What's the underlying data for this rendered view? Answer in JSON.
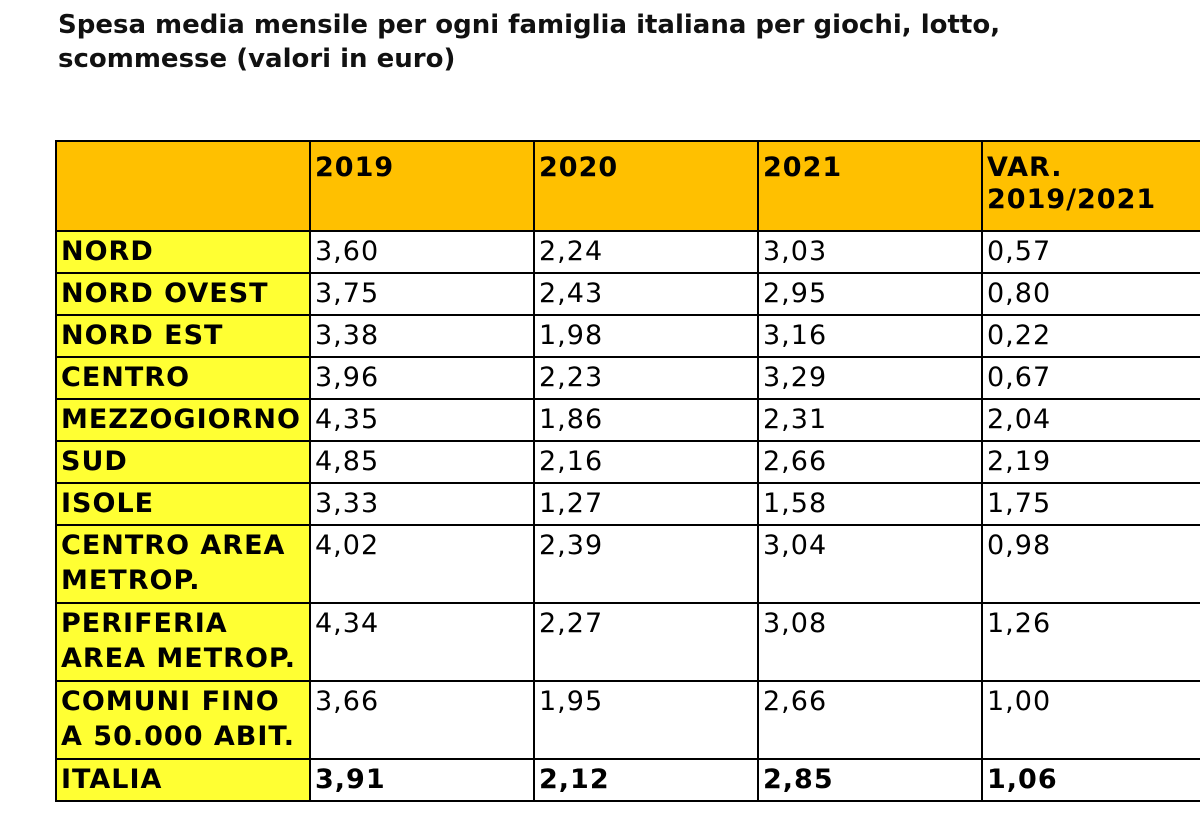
{
  "chart_data": {
    "type": "table",
    "title": "Spesa media mensile per ogni famiglia italiana per giochi, lotto, scommesse (valori in euro)",
    "columns": [
      "",
      "2019",
      "2020",
      "2021",
      "VAR. 2019/2021"
    ],
    "rows": [
      {
        "label": "NORD",
        "values": [
          "3,60",
          "2,24",
          "3,03",
          "0,57"
        ]
      },
      {
        "label": "NORD OVEST",
        "values": [
          "3,75",
          "2,43",
          "2,95",
          "0,80"
        ]
      },
      {
        "label": "NORD EST",
        "values": [
          "3,38",
          "1,98",
          "3,16",
          "0,22"
        ]
      },
      {
        "label": "CENTRO",
        "values": [
          "3,96",
          "2,23",
          "3,29",
          "0,67"
        ]
      },
      {
        "label": "MEZZOGIORNO",
        "values": [
          "4,35",
          "1,86",
          "2,31",
          "2,04"
        ]
      },
      {
        "label": "SUD",
        "values": [
          "4,85",
          "2,16",
          "2,66",
          "2,19"
        ]
      },
      {
        "label": "ISOLE",
        "values": [
          "3,33",
          "1,27",
          "1,58",
          "1,75"
        ]
      },
      {
        "label": "CENTRO AREA METROP.",
        "values": [
          "4,02",
          "2,39",
          "3,04",
          "0,98"
        ]
      },
      {
        "label": "PERIFERIA AREA METROP.",
        "values": [
          "4,34",
          "2,27",
          "3,08",
          "1,26"
        ]
      },
      {
        "label": "COMUNI FINO A 50.000 ABIT.",
        "values": [
          "3,66",
          "1,95",
          "2,66",
          "1,00"
        ]
      },
      {
        "label": "ITALIA",
        "values": [
          "3,91",
          "2,12",
          "2,85",
          "1,06"
        ]
      }
    ],
    "colors": {
      "header_fill": "#ffc000",
      "label_fill": "#ffff33",
      "border": "#000000"
    }
  }
}
